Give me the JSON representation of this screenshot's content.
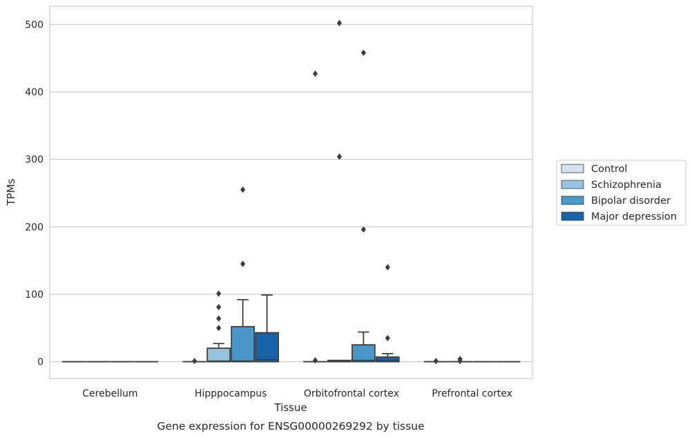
{
  "chart_data": {
    "type": "boxplot",
    "title": "",
    "caption": "Gene expression for ENSG00000269292 by tissue",
    "xlabel": "Tissue",
    "ylabel": "TPMs",
    "ylim": [
      -25,
      527
    ],
    "yticks": [
      0,
      100,
      200,
      300,
      400,
      500
    ],
    "grid": "horizontal",
    "legend_position": "right",
    "categories": [
      "Cerebellum",
      "Hipppocampus",
      "Orbitofrontal cortex",
      "Prefrontal cortex"
    ],
    "series": [
      {
        "name": "Control",
        "color": "#d0e1f2",
        "boxes": [
          {
            "category": "Cerebellum",
            "whislo": 0,
            "q1": 0,
            "med": 0,
            "q3": 0,
            "whishi": 0,
            "outliers": []
          },
          {
            "category": "Hipppocampus",
            "whislo": 0,
            "q1": 0,
            "med": 0,
            "q3": 0,
            "whishi": 0,
            "outliers": [
              1
            ]
          },
          {
            "category": "Orbitofrontal cortex",
            "whislo": 0,
            "q1": 0,
            "med": 0,
            "q3": 0,
            "whishi": 0,
            "outliers": [
              2,
              427
            ]
          },
          {
            "category": "Prefrontal cortex",
            "whislo": 0,
            "q1": 0,
            "med": 0,
            "q3": 0,
            "whishi": 0,
            "outliers": [
              1
            ]
          }
        ]
      },
      {
        "name": "Schizophrenia",
        "color": "#94c4df",
        "boxes": [
          {
            "category": "Cerebellum",
            "whislo": 0,
            "q1": 0,
            "med": 0,
            "q3": 0,
            "whishi": 0,
            "outliers": []
          },
          {
            "category": "Hipppocampus",
            "whislo": 0,
            "q1": 0,
            "med": 1,
            "q3": 20,
            "whishi": 27,
            "outliers": [
              50,
              64,
              81,
              101
            ]
          },
          {
            "category": "Orbitofrontal cortex",
            "whislo": 0,
            "q1": 0,
            "med": 1,
            "q3": 2,
            "whishi": 2,
            "outliers": [
              304,
              502
            ]
          },
          {
            "category": "Prefrontal cortex",
            "whislo": 0,
            "q1": 0,
            "med": 0,
            "q3": 0,
            "whishi": 0,
            "outliers": [
              1,
              4
            ]
          }
        ]
      },
      {
        "name": "Bipolar disorder",
        "color": "#4a98c9",
        "boxes": [
          {
            "category": "Cerebellum",
            "whislo": 0,
            "q1": 0,
            "med": 0,
            "q3": 0,
            "whishi": 0,
            "outliers": []
          },
          {
            "category": "Hipppocampus",
            "whislo": 0,
            "q1": 0,
            "med": 1,
            "q3": 52,
            "whishi": 92,
            "outliers": [
              145,
              255
            ]
          },
          {
            "category": "Orbitofrontal cortex",
            "whislo": 0,
            "q1": 0,
            "med": 2,
            "q3": 25,
            "whishi": 44,
            "outliers": [
              196,
              458
            ]
          },
          {
            "category": "Prefrontal cortex",
            "whislo": 0,
            "q1": 0,
            "med": 0,
            "q3": 0,
            "whishi": 0,
            "outliers": []
          }
        ]
      },
      {
        "name": "Major depression",
        "color": "#1764ab",
        "boxes": [
          {
            "category": "Cerebellum",
            "whislo": 0,
            "q1": 0,
            "med": 0,
            "q3": 0,
            "whishi": 0,
            "outliers": []
          },
          {
            "category": "Hipppocampus",
            "whislo": 0,
            "q1": 0,
            "med": 3,
            "q3": 43,
            "whishi": 99,
            "outliers": []
          },
          {
            "category": "Orbitofrontal cortex",
            "whislo": 0,
            "q1": 0,
            "med": 2,
            "q3": 7,
            "whishi": 12,
            "outliers": [
              35,
              140
            ]
          },
          {
            "category": "Prefrontal cortex",
            "whislo": 0,
            "q1": 0,
            "med": 0,
            "q3": 0,
            "whishi": 0,
            "outliers": []
          }
        ]
      }
    ]
  }
}
